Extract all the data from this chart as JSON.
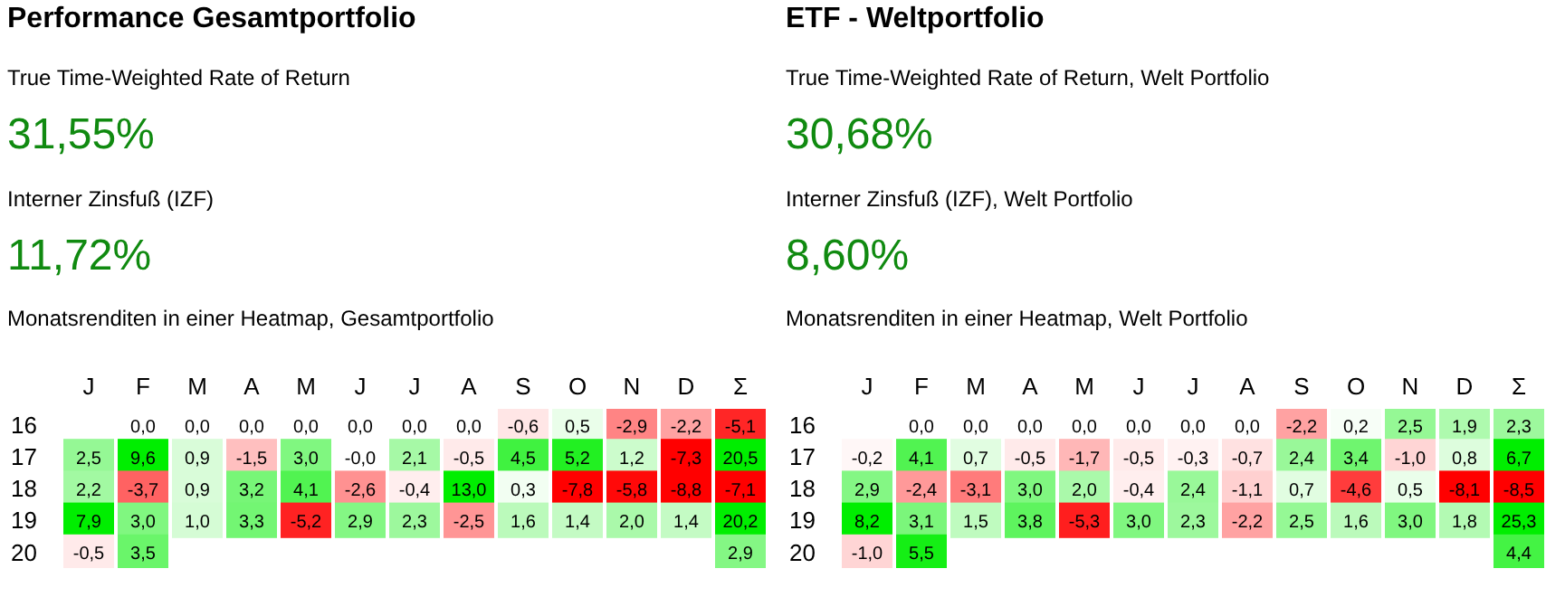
{
  "chart_data": [
    {
      "type": "heatmap",
      "title": "Performance Gesamtportfolio",
      "annotations": [
        "True Time-Weighted Rate of Return",
        "31,55%",
        "Interner Zinsfuß (IZF)",
        "11,72%"
      ],
      "subtitle": "Monatsrenditen in einer Heatmap, Gesamtportfolio",
      "categories": [
        "J",
        "F",
        "M",
        "A",
        "M",
        "J",
        "J",
        "A",
        "S",
        "O",
        "N",
        "D",
        "Σ"
      ],
      "y_categories": [
        "16",
        "17",
        "18",
        "19",
        "20"
      ],
      "cells": [
        [
          null,
          0.0,
          0.0,
          0.0,
          0.0,
          0.0,
          0.0,
          0.0,
          -0.6,
          0.5,
          -2.9,
          -2.2,
          -5.1
        ],
        [
          2.5,
          9.6,
          0.9,
          -1.5,
          3.0,
          -0.0,
          2.1,
          -0.5,
          4.5,
          5.2,
          1.2,
          -7.3,
          20.5
        ],
        [
          2.2,
          -3.7,
          0.9,
          3.2,
          4.1,
          -2.6,
          -0.4,
          13.0,
          0.3,
          -7.8,
          -5.8,
          -8.8,
          -7.1
        ],
        [
          7.9,
          3.0,
          1.0,
          3.3,
          -5.2,
          2.9,
          2.3,
          -2.5,
          1.6,
          1.4,
          2.0,
          1.4,
          20.2
        ],
        [
          -0.5,
          3.5,
          null,
          null,
          null,
          null,
          null,
          null,
          null,
          null,
          null,
          null,
          2.9
        ]
      ],
      "cell_labels": [
        [
          null,
          "0,0",
          "0,0",
          "0,0",
          "0,0",
          "0,0",
          "0,0",
          "0,0",
          "-0,6",
          "0,5",
          "-2,9",
          "-2,2",
          "-5,1"
        ],
        [
          "2,5",
          "9,6",
          "0,9",
          "-1,5",
          "3,0",
          "-0,0",
          "2,1",
          "-0,5",
          "4,5",
          "5,2",
          "1,2",
          "-7,3",
          "20,5"
        ],
        [
          "2,2",
          "-3,7",
          "0,9",
          "3,2",
          "4,1",
          "-2,6",
          "-0,4",
          "13,0",
          "0,3",
          "-7,8",
          "-5,8",
          "-8,8",
          "-7,1"
        ],
        [
          "7,9",
          "3,0",
          "1,0",
          "3,3",
          "-5,2",
          "2,9",
          "2,3",
          "-2,5",
          "1,6",
          "1,4",
          "2,0",
          "1,4",
          "20,2"
        ],
        [
          "-0,5",
          "3,5",
          null,
          null,
          null,
          null,
          null,
          null,
          null,
          null,
          null,
          null,
          "2,9"
        ]
      ]
    },
    {
      "type": "heatmap",
      "title": "ETF - Weltportfolio",
      "annotations": [
        "True Time-Weighted Rate of Return, Welt Portfolio",
        "30,68%",
        "Interner Zinsfuß (IZF), Welt Portfolio",
        "8,60%"
      ],
      "subtitle": "Monatsrenditen in einer Heatmap, Welt Portfolio",
      "categories": [
        "J",
        "F",
        "M",
        "A",
        "M",
        "J",
        "J",
        "A",
        "S",
        "O",
        "N",
        "D",
        "Σ"
      ],
      "y_categories": [
        "16",
        "17",
        "18",
        "19",
        "20"
      ],
      "cells": [
        [
          null,
          0.0,
          0.0,
          0.0,
          0.0,
          0.0,
          0.0,
          0.0,
          -2.2,
          0.2,
          2.5,
          1.9,
          2.3
        ],
        [
          -0.2,
          4.1,
          0.7,
          -0.5,
          -1.7,
          -0.5,
          -0.3,
          -0.7,
          2.4,
          3.4,
          -1.0,
          0.8,
          6.7
        ],
        [
          2.9,
          -2.4,
          -3.1,
          3.0,
          2.0,
          -0.4,
          2.4,
          -1.1,
          0.7,
          -4.6,
          0.5,
          -8.1,
          -8.5
        ],
        [
          8.2,
          3.1,
          1.5,
          3.8,
          -5.3,
          3.0,
          2.3,
          -2.2,
          2.5,
          1.6,
          3.0,
          1.8,
          25.3
        ],
        [
          -1.0,
          5.5,
          null,
          null,
          null,
          null,
          null,
          null,
          null,
          null,
          null,
          null,
          4.4
        ]
      ],
      "cell_labels": [
        [
          null,
          "0,0",
          "0,0",
          "0,0",
          "0,0",
          "0,0",
          "0,0",
          "0,0",
          "-2,2",
          "0,2",
          "2,5",
          "1,9",
          "2,3"
        ],
        [
          "-0,2",
          "4,1",
          "0,7",
          "-0,5",
          "-1,7",
          "-0,5",
          "-0,3",
          "-0,7",
          "2,4",
          "3,4",
          "-1,0",
          "0,8",
          "6,7"
        ],
        [
          "2,9",
          "-2,4",
          "-3,1",
          "3,0",
          "2,0",
          "-0,4",
          "2,4",
          "-1,1",
          "0,7",
          "-4,6",
          "0,5",
          "-8,1",
          "-8,5"
        ],
        [
          "8,2",
          "3,1",
          "1,5",
          "3,8",
          "-5,3",
          "3,0",
          "2,3",
          "-2,2",
          "2,5",
          "1,6",
          "3,0",
          "1,8",
          "25,3"
        ],
        [
          "-1,0",
          "5,5",
          null,
          null,
          null,
          null,
          null,
          null,
          null,
          null,
          null,
          null,
          "4,4"
        ]
      ]
    }
  ]
}
